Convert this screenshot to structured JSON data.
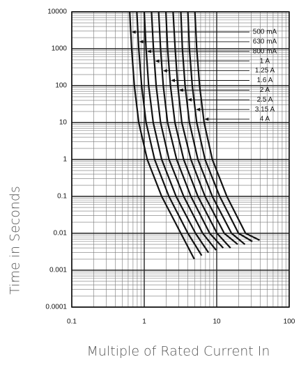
{
  "chart_data": {
    "type": "line",
    "x_label": "Multiple of Rated Current In",
    "y_label": "Time in Seconds",
    "xscale": "log",
    "yscale": "log",
    "grid": true,
    "xlim": [
      0.1,
      100
    ],
    "xticks": [
      0.1,
      1,
      10,
      100
    ],
    "ylim": [
      0.0001,
      10000
    ],
    "yticks": [
      0.0001,
      0.001,
      0.01,
      0.1,
      1,
      10,
      100,
      1000,
      10000
    ],
    "series": [
      {
        "name": "500 mA",
        "color": "#111111",
        "x": [
          0.63,
          0.67,
          0.73,
          0.84,
          1.1,
          1.74,
          3.2,
          4.9
        ],
        "values": [
          10000,
          1000,
          100,
          10,
          1,
          0.1,
          0.01,
          0.002
        ]
      },
      {
        "name": "630 mA",
        "color": "#111111",
        "x": [
          0.79,
          0.84,
          0.92,
          1.06,
          1.39,
          2.19,
          4.0,
          6.2
        ],
        "values": [
          10000,
          1000,
          100,
          10,
          1,
          0.1,
          0.01,
          0.0025
        ]
      },
      {
        "name": "800 mA",
        "color": "#111111",
        "x": [
          1.0,
          1.06,
          1.15,
          1.33,
          1.74,
          2.75,
          5.1,
          7.7
        ],
        "values": [
          10000,
          1000,
          100,
          10,
          1,
          0.1,
          0.01,
          0.003
        ]
      },
      {
        "name": "1 A",
        "color": "#111111",
        "x": [
          1.26,
          1.34,
          1.46,
          1.68,
          2.2,
          3.5,
          6.4,
          9.8
        ],
        "values": [
          10000,
          1000,
          100,
          10,
          1,
          0.1,
          0.01,
          0.0035
        ]
      },
      {
        "name": "1.25 A",
        "color": "#111111",
        "x": [
          1.58,
          1.68,
          1.83,
          2.1,
          2.8,
          4.4,
          8.0,
          12.3
        ],
        "values": [
          10000,
          1000,
          100,
          10,
          1,
          0.1,
          0.01,
          0.004
        ]
      },
      {
        "name": "1.6 A",
        "color": "#111111",
        "x": [
          1.99,
          2.1,
          2.3,
          2.65,
          3.5,
          5.5,
          10.1,
          15.5
        ],
        "values": [
          10000,
          1000,
          100,
          10,
          1,
          0.1,
          0.01,
          0.004
        ]
      },
      {
        "name": "2 A",
        "color": "#111111",
        "x": [
          2.5,
          2.67,
          2.9,
          3.3,
          4.4,
          6.9,
          12.7,
          19.5
        ],
        "values": [
          10000,
          1000,
          100,
          10,
          1,
          0.1,
          0.01,
          0.005
        ]
      },
      {
        "name": "2.5 A",
        "color": "#111111",
        "x": [
          3.2,
          3.36,
          3.66,
          4.2,
          5.5,
          8.7,
          16,
          24.5
        ],
        "values": [
          10000,
          1000,
          100,
          10,
          1,
          0.1,
          0.01,
          0.005
        ]
      },
      {
        "name": "3.15 A",
        "color": "#111111",
        "x": [
          4.0,
          4.2,
          4.6,
          5.3,
          6.9,
          11,
          20,
          31
        ],
        "values": [
          10000,
          1000,
          100,
          10,
          1,
          0.1,
          0.01,
          0.006
        ]
      },
      {
        "name": "4 A",
        "color": "#111111",
        "x": [
          5.0,
          5.3,
          5.8,
          6.7,
          8.7,
          13.8,
          25,
          39
        ],
        "values": [
          10000,
          1000,
          100,
          10,
          1,
          0.1,
          0.01,
          0.0065
        ]
      }
    ]
  }
}
